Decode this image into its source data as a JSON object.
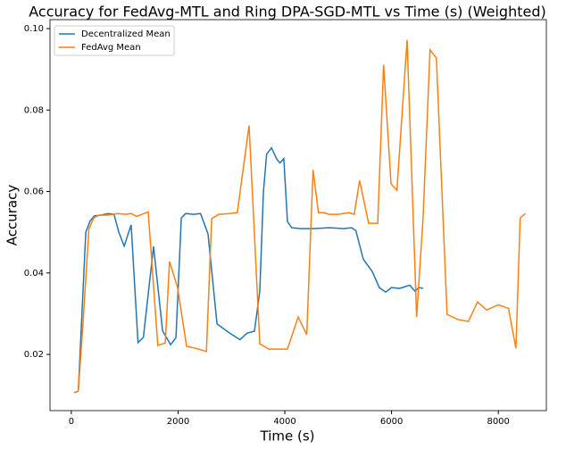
{
  "chart_data": {
    "type": "line",
    "title": "Accuracy for FedAvg-MTL and Ring DPA-SGD-MTL vs Time (s) (Weighted)",
    "x_label": "Time (s)",
    "y_label": "Accuracy",
    "xlim": [
      -400,
      8900
    ],
    "ylim": [
      0.0062,
      0.1022
    ],
    "xticks": [
      0,
      2000,
      4000,
      6000,
      8000
    ],
    "yticks": [
      0.02,
      0.04,
      0.06,
      0.08,
      {
        "value": 0.1,
        "label": "0.10"
      }
    ],
    "legend": "upper left",
    "series": [
      {
        "name": "Decentralized Mean",
        "color": "#1f77b4",
        "x": [
          50,
          130,
          270,
          350,
          430,
          550,
          690,
          800,
          890,
          990,
          1120,
          1250,
          1350,
          1540,
          1710,
          1860,
          1960,
          2060,
          2140,
          2290,
          2420,
          2560,
          2730,
          2960,
          3160,
          3290,
          3430,
          3530,
          3600,
          3660,
          3750,
          3850,
          3910,
          3980,
          4050,
          4130,
          4300,
          4530,
          4830,
          5100,
          5250,
          5330,
          5470,
          5640,
          5770,
          5890,
          6000,
          6150,
          6340,
          6440,
          6510,
          6590
        ],
        "values": [
          0.0106,
          0.011,
          0.05,
          0.0527,
          0.054,
          0.0542,
          0.0546,
          0.0544,
          0.05,
          0.0466,
          0.0518,
          0.0229,
          0.0242,
          0.0465,
          0.0258,
          0.0224,
          0.0241,
          0.0535,
          0.0546,
          0.0544,
          0.0546,
          0.0496,
          0.0275,
          0.0253,
          0.0236,
          0.0252,
          0.0257,
          0.0355,
          0.06,
          0.0692,
          0.0707,
          0.0679,
          0.067,
          0.0681,
          0.0526,
          0.0511,
          0.0509,
          0.0509,
          0.0511,
          0.0509,
          0.0511,
          0.0504,
          0.0434,
          0.0403,
          0.0364,
          0.0353,
          0.0364,
          0.0362,
          0.037,
          0.0355,
          0.0364,
          0.0362
        ]
      },
      {
        "name": "FedAvg Mean",
        "color": "#ff7f0e",
        "x": [
          50,
          130,
          220,
          330,
          420,
          520,
          690,
          870,
          1020,
          1120,
          1220,
          1440,
          1620,
          1760,
          1840,
          1990,
          2160,
          2330,
          2530,
          2630,
          2760,
          2960,
          3110,
          3330,
          3530,
          3700,
          4050,
          4250,
          4410,
          4530,
          4630,
          4730,
          4830,
          5000,
          5200,
          5300,
          5400,
          5570,
          5740,
          5850,
          5990,
          6100,
          6290,
          6470,
          6590,
          6720,
          6840,
          7040,
          7260,
          7440,
          7610,
          7780,
          8000,
          8190,
          8330,
          8410,
          8510
        ],
        "values": [
          0.0106,
          0.011,
          0.0281,
          0.0508,
          0.0535,
          0.0542,
          0.0542,
          0.0546,
          0.0544,
          0.0546,
          0.0539,
          0.055,
          0.0222,
          0.0228,
          0.0428,
          0.0364,
          0.022,
          0.0215,
          0.0207,
          0.0533,
          0.0544,
          0.0546,
          0.0548,
          0.0762,
          0.0226,
          0.0213,
          0.0213,
          0.0292,
          0.0248,
          0.0653,
          0.0548,
          0.0548,
          0.0544,
          0.0544,
          0.0548,
          0.0544,
          0.0627,
          0.0522,
          0.0522,
          0.0911,
          0.0619,
          0.0603,
          0.0972,
          0.0292,
          0.0535,
          0.0948,
          0.0928,
          0.0298,
          0.0285,
          0.0281,
          0.0329,
          0.0309,
          0.0322,
          0.0313,
          0.0215,
          0.0535,
          0.0546
        ]
      }
    ]
  }
}
